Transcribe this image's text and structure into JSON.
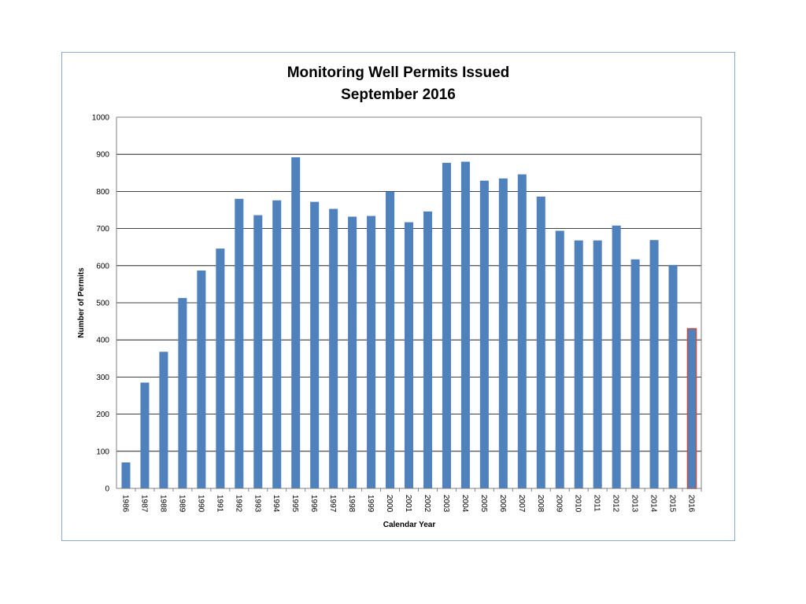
{
  "chart_data": {
    "type": "bar",
    "title": "Monitoring Well Permits Issued",
    "subtitle": "September 2016",
    "xlabel": "Calendar Year",
    "ylabel": "Number of Permits",
    "ylim": [
      0,
      1000
    ],
    "yticks": [
      "0",
      "100",
      "200",
      "300",
      "400",
      "500",
      "600",
      "700",
      "800",
      "900",
      "1000"
    ],
    "grid": true,
    "legend": "none",
    "colors": {
      "bar": "#4f81bd",
      "highlight_bar": "#4f81bd",
      "highlight_border": "#c0504d",
      "gridline": "#000000",
      "frame": "#8eaacb"
    },
    "categories": [
      "1986",
      "1987",
      "1988",
      "1989",
      "1990",
      "1991",
      "1992",
      "1993",
      "1994",
      "1995",
      "1996",
      "1997",
      "1998",
      "1999",
      "2000",
      "2001",
      "2002",
      "2003",
      "2004",
      "2005",
      "2006",
      "2007",
      "2008",
      "2009",
      "2010",
      "2011",
      "2012",
      "2013",
      "2014",
      "2015",
      "2016"
    ],
    "values": [
      70,
      285,
      368,
      513,
      587,
      646,
      780,
      736,
      776,
      892,
      772,
      753,
      732,
      734,
      800,
      717,
      746,
      877,
      880,
      829,
      835,
      846,
      786,
      694,
      668,
      668,
      708,
      617,
      669,
      602,
      430
    ],
    "highlighted_category": "2016"
  }
}
